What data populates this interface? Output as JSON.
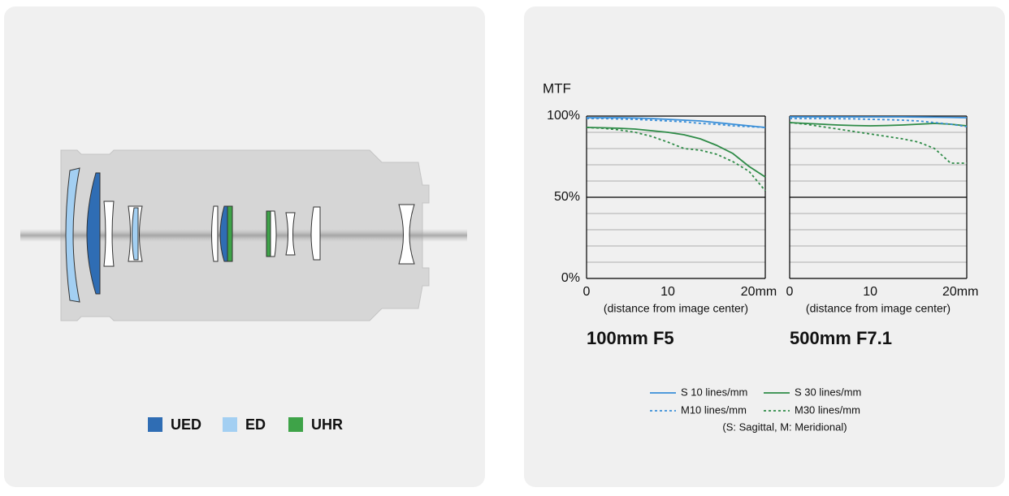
{
  "diagram": {
    "legend": [
      {
        "label": "UED",
        "color": "#2f6db4"
      },
      {
        "label": "ED",
        "color": "#a3cff2"
      },
      {
        "label": "UHR",
        "color": "#3ea348"
      }
    ]
  },
  "legend_note": "(S: Sagittal, M: Meridional)",
  "chart_data": [
    {
      "type": "line",
      "ylabel": "MTF",
      "title": "100mm F5",
      "xlabel": "(distance from image center)",
      "x": [
        0,
        2,
        4,
        6,
        8,
        10,
        12,
        14,
        16,
        18,
        20,
        22
      ],
      "xlim": [
        0,
        22
      ],
      "ylim": [
        0,
        100
      ],
      "xticks": [
        0,
        10,
        {
          "value": 20,
          "label": "20mm"
        }
      ],
      "yticks": [
        {
          "value": 0,
          "label": "0%"
        },
        {
          "value": 50,
          "label": "50%"
        },
        {
          "value": 100,
          "label": "100%"
        }
      ],
      "ygrid": [
        10,
        20,
        30,
        40,
        60,
        70,
        80,
        90
      ],
      "series": [
        {
          "name": "S 10 lines/mm",
          "color": "#3a8fd8",
          "dashed": false,
          "values": [
            99,
            99,
            99,
            98.8,
            98.5,
            98,
            97.5,
            97,
            96,
            95,
            94,
            93
          ]
        },
        {
          "name": "S 30 lines/mm",
          "color": "#2e8b47",
          "dashed": false,
          "values": [
            93,
            92.8,
            92.5,
            92,
            91,
            90,
            88.5,
            86,
            82,
            77,
            69,
            62.5
          ]
        },
        {
          "name": "M10 lines/mm",
          "color": "#3a8fd8",
          "dashed": true,
          "values": [
            98.5,
            98.5,
            98.2,
            98,
            97.5,
            97,
            96.5,
            95.5,
            95,
            94,
            93.5,
            93
          ]
        },
        {
          "name": "M30 lines/mm",
          "color": "#2e8b47",
          "dashed": true,
          "values": [
            93,
            92.5,
            91.5,
            90,
            87.5,
            84,
            80,
            79,
            76.5,
            72,
            66,
            54
          ]
        }
      ]
    },
    {
      "type": "line",
      "title": "500mm F7.1",
      "xlabel": "(distance from image center)",
      "x": [
        0,
        2,
        4,
        6,
        8,
        10,
        12,
        14,
        16,
        18,
        20,
        22
      ],
      "xlim": [
        0,
        22
      ],
      "ylim": [
        0,
        100
      ],
      "xticks": [
        0,
        10,
        {
          "value": 20,
          "label": "20mm"
        }
      ],
      "ymajor": [
        0,
        50,
        100
      ],
      "ygrid": [
        10,
        20,
        30,
        40,
        60,
        70,
        80,
        90
      ],
      "series": [
        {
          "name": "S 10 lines/mm",
          "color": "#3a8fd8",
          "dashed": false,
          "values": [
            99.5,
            99.5,
            99.5,
            99.5,
            99.5,
            99.5,
            99.5,
            99.5,
            99.4,
            99.3,
            99.2,
            99
          ]
        },
        {
          "name": "S 30 lines/mm",
          "color": "#2e8b47",
          "dashed": false,
          "values": [
            96,
            95.5,
            95,
            94.5,
            94.2,
            94,
            94.2,
            94.5,
            95,
            95.5,
            95,
            94
          ]
        },
        {
          "name": "M10 lines/mm",
          "color": "#3a8fd8",
          "dashed": true,
          "values": [
            98.5,
            98.5,
            98.5,
            98.4,
            98.3,
            98,
            97.8,
            97.5,
            97,
            96,
            95,
            93.5
          ]
        },
        {
          "name": "M30 lines/mm",
          "color": "#2e8b47",
          "dashed": true,
          "values": [
            96,
            95,
            93.5,
            92,
            90.5,
            89,
            87.5,
            86,
            84,
            80,
            71,
            71
          ]
        }
      ]
    }
  ]
}
